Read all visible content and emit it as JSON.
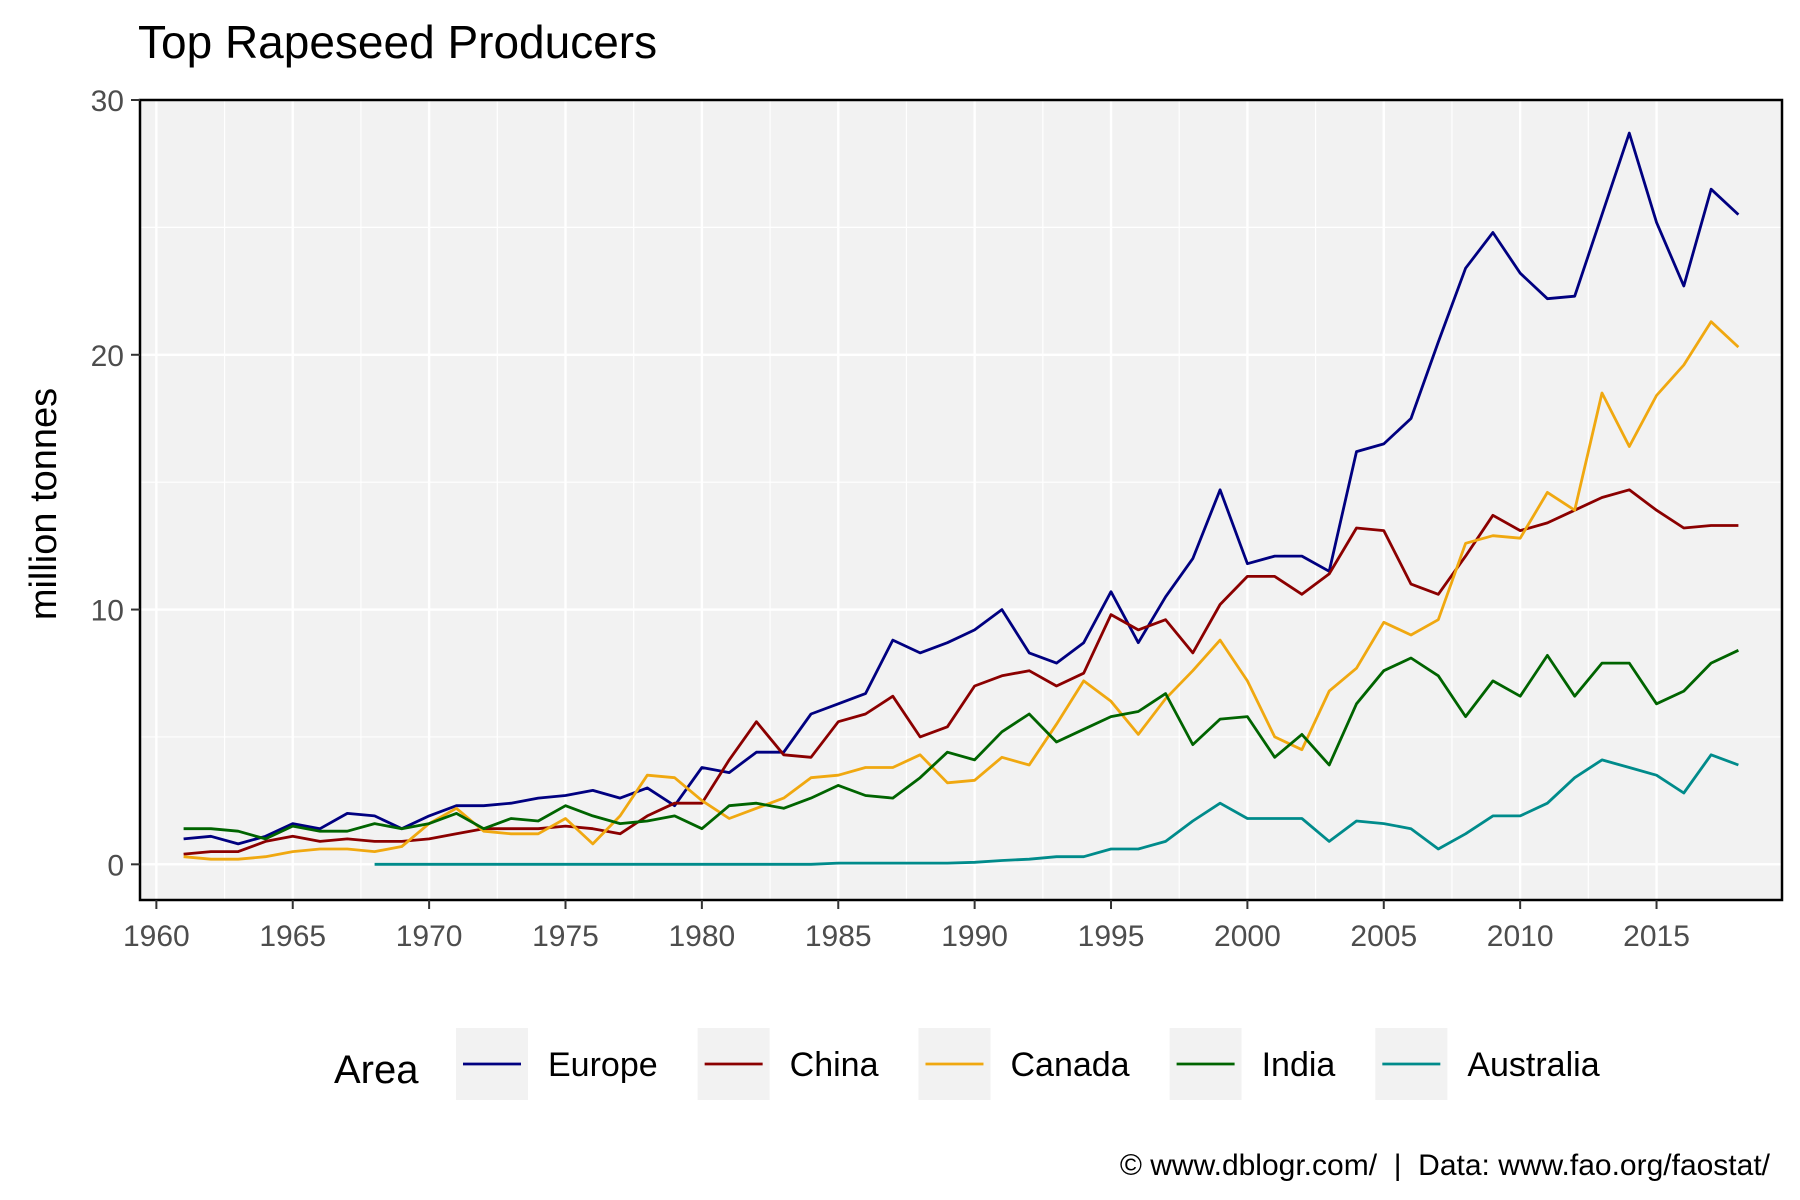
{
  "chart_data": {
    "type": "line",
    "title": "Top Rapeseed Producers",
    "xlabel": "",
    "ylabel": "million tonnes",
    "xlim": [
      1959.4,
      2019.6
    ],
    "ylim": [
      -1.4,
      30
    ],
    "x_ticks": [
      1960,
      1965,
      1970,
      1975,
      1980,
      1985,
      1990,
      1995,
      2000,
      2005,
      2010,
      2015
    ],
    "y_ticks": [
      0,
      10,
      20,
      30
    ],
    "grid": true,
    "legend_title": "Area",
    "legend_position": "bottom",
    "caption": "© www.dblogr.com/  |  Data: www.fao.org/faostat/",
    "series": [
      {
        "name": "Europe",
        "color": "#000080",
        "x_start": 1961,
        "values": [
          1.0,
          1.1,
          0.8,
          1.1,
          1.6,
          1.4,
          2.0,
          1.9,
          1.4,
          1.9,
          2.3,
          2.3,
          2.4,
          2.6,
          2.7,
          2.9,
          2.6,
          3.0,
          2.3,
          3.8,
          3.6,
          4.4,
          4.4,
          5.9,
          6.3,
          6.7,
          8.8,
          8.3,
          8.7,
          9.2,
          10.0,
          8.3,
          7.9,
          8.7,
          10.7,
          8.7,
          10.5,
          12.0,
          14.7,
          11.8,
          12.1,
          12.1,
          11.5,
          16.2,
          16.5,
          17.5,
          20.5,
          23.4,
          24.8,
          23.2,
          22.2,
          22.3,
          25.5,
          28.7,
          25.2,
          22.7,
          26.5,
          25.5
        ]
      },
      {
        "name": "China",
        "color": "#8B0000",
        "x_start": 1961,
        "values": [
          0.4,
          0.5,
          0.5,
          0.9,
          1.1,
          0.9,
          1.0,
          0.9,
          0.9,
          1.0,
          1.2,
          1.4,
          1.4,
          1.4,
          1.5,
          1.4,
          1.2,
          1.9,
          2.4,
          2.4,
          4.1,
          5.6,
          4.3,
          4.2,
          5.6,
          5.9,
          6.6,
          5.0,
          5.4,
          7.0,
          7.4,
          7.6,
          7.0,
          7.5,
          9.8,
          9.2,
          9.6,
          8.3,
          10.2,
          11.3,
          11.3,
          10.6,
          11.4,
          13.2,
          13.1,
          11.0,
          10.6,
          12.1,
          13.7,
          13.1,
          13.4,
          13.9,
          14.4,
          14.7,
          13.9,
          13.2,
          13.3,
          13.3
        ]
      },
      {
        "name": "Canada",
        "color": "#F0A810",
        "x_start": 1961,
        "values": [
          0.3,
          0.2,
          0.2,
          0.3,
          0.5,
          0.6,
          0.6,
          0.5,
          0.7,
          1.6,
          2.2,
          1.3,
          1.2,
          1.2,
          1.8,
          0.8,
          1.9,
          3.5,
          3.4,
          2.5,
          1.8,
          2.2,
          2.6,
          3.4,
          3.5,
          3.8,
          3.8,
          4.3,
          3.2,
          3.3,
          4.2,
          3.9,
          5.5,
          7.2,
          6.4,
          5.1,
          6.5,
          7.6,
          8.8,
          7.2,
          5.0,
          4.5,
          6.8,
          7.7,
          9.5,
          9.0,
          9.6,
          12.6,
          12.9,
          12.8,
          14.6,
          13.9,
          18.5,
          16.4,
          18.4,
          19.6,
          21.3,
          20.3
        ]
      },
      {
        "name": "India",
        "color": "#006400",
        "x_start": 1961,
        "values": [
          1.4,
          1.4,
          1.3,
          1.0,
          1.5,
          1.3,
          1.3,
          1.6,
          1.4,
          1.6,
          2.0,
          1.4,
          1.8,
          1.7,
          2.3,
          1.9,
          1.6,
          1.7,
          1.9,
          1.4,
          2.3,
          2.4,
          2.2,
          2.6,
          3.1,
          2.7,
          2.6,
          3.4,
          4.4,
          4.1,
          5.2,
          5.9,
          4.8,
          5.3,
          5.8,
          6.0,
          6.7,
          4.7,
          5.7,
          5.8,
          4.2,
          5.1,
          3.9,
          6.3,
          7.6,
          8.1,
          7.4,
          5.8,
          7.2,
          6.6,
          8.2,
          6.6,
          7.9,
          7.9,
          6.3,
          6.8,
          7.9,
          8.4
        ]
      },
      {
        "name": "Australia",
        "color": "#008B8B",
        "x_start": 1968,
        "values": [
          0.0,
          0.0,
          0.0,
          0.0,
          0.0,
          0.0,
          0.0,
          0.0,
          0.0,
          0.0,
          0.0,
          0.0,
          0.0,
          0.0,
          0.0,
          0.0,
          0.0,
          0.05,
          0.05,
          0.05,
          0.05,
          0.05,
          0.08,
          0.15,
          0.2,
          0.3,
          0.3,
          0.6,
          0.6,
          0.9,
          1.7,
          2.4,
          1.8,
          1.8,
          1.8,
          0.9,
          1.7,
          1.6,
          1.4,
          0.6,
          1.2,
          1.9,
          1.9,
          2.4,
          3.4,
          4.1,
          3.8,
          3.5,
          2.8,
          4.3,
          3.9
        ]
      }
    ]
  }
}
